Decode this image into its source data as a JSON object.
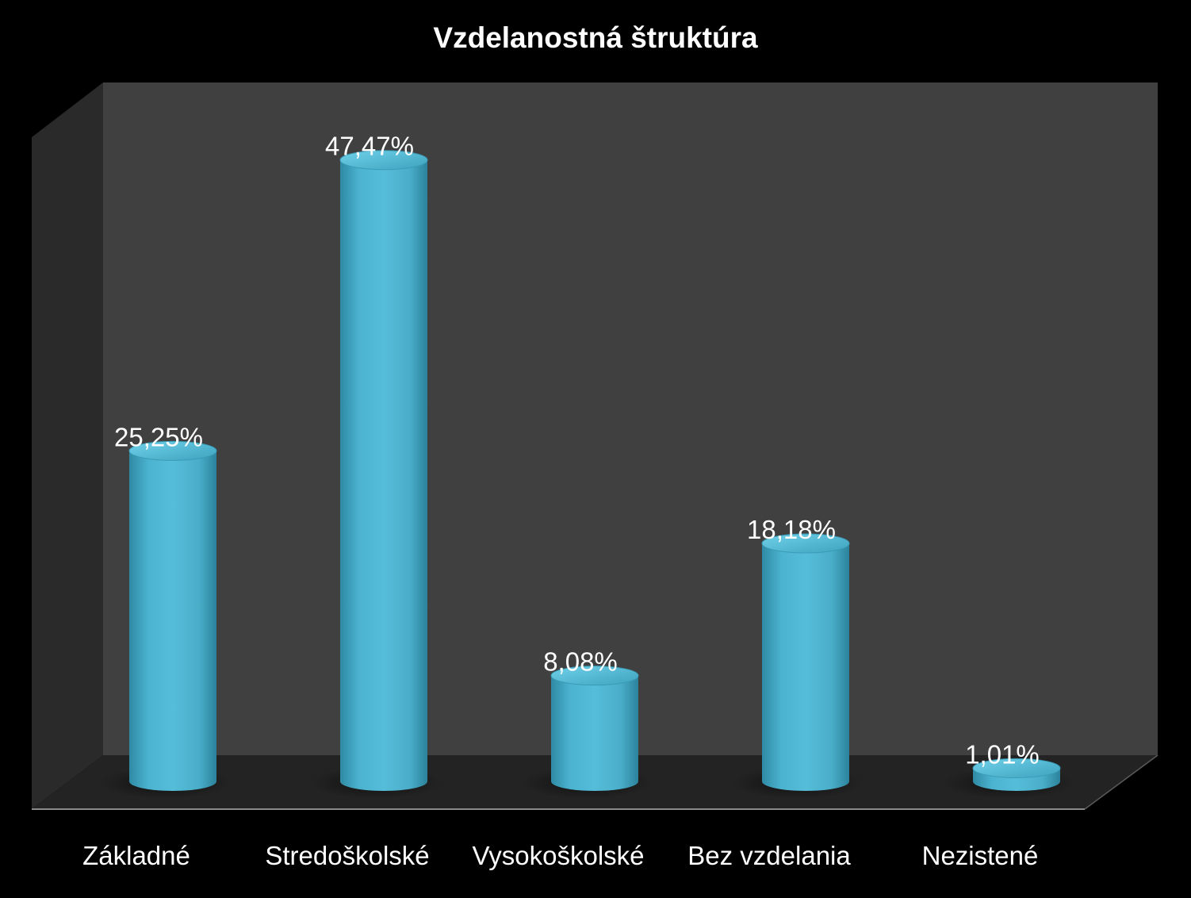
{
  "chart_data": {
    "type": "bar",
    "title": "Vzdelanostná štruktúra",
    "categories": [
      "Základné",
      "Stredoškolské",
      "Vysokoškolské",
      "Bez vzdelania",
      "Nezistené"
    ],
    "values": [
      25.25,
      47.47,
      8.08,
      18.18,
      1.01
    ],
    "data_labels": [
      "25,25%",
      "47,47%",
      "8,08%",
      "18,18%",
      "1,01%"
    ],
    "ylim": [
      0,
      50
    ],
    "grid": false,
    "legend": "none",
    "style": "3d-cylinder",
    "colors": {
      "background": "#000000",
      "back_wall": "#404040",
      "side_wall": "#2a2a2a",
      "floor": "#222222",
      "bar": "#4bacc6",
      "bar_top": "#5bc3dd",
      "text": "#ffffff"
    }
  }
}
